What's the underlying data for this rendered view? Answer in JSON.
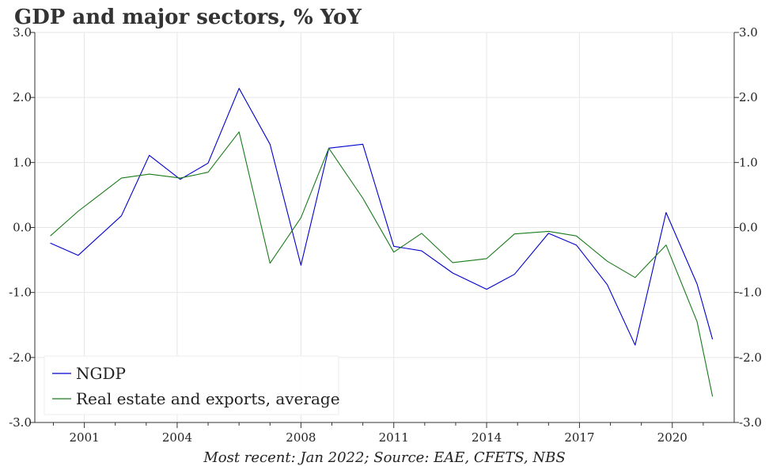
{
  "title": "GDP and major sectors, % YoY",
  "source": "Most recent: Jan 2022; Source: EAE, CFETS, NBS",
  "chart_data": {
    "type": "line",
    "title": "GDP and major sectors, % YoY",
    "xlabel": "",
    "ylabel": "",
    "ylim": [
      -3.0,
      3.0
    ],
    "y_ticks": [
      3.0,
      2.0,
      1.0,
      0.0,
      -1.0,
      -2.0,
      -3.0
    ],
    "y_tick_labels": [
      "3.0",
      "2.0",
      "1.0",
      "0.0",
      "-1.0",
      "-2.0",
      "-3.0"
    ],
    "x_ticks": [
      2001,
      2004,
      2008,
      2011,
      2014,
      2017,
      2020
    ],
    "x_tick_labels": [
      "2001",
      "2004",
      "2008",
      "2011",
      "2014",
      "2017",
      "2020"
    ],
    "xlim": [
      1999.4,
      2022.0
    ],
    "grid": true,
    "legend_position": "bottom-left",
    "series": [
      {
        "name": "NGDP",
        "color": "#0000cc",
        "x": [
          1999.9,
          2000.8,
          2002.2,
          2003.1,
          2004.1,
          2005.0,
          2006.0,
          2007.0,
          2008.0,
          2008.9,
          2010.0,
          2011.0,
          2011.9,
          2012.9,
          2014.0,
          2014.9,
          2016.0,
          2016.9,
          2017.9,
          2018.8,
          2019.8,
          2020.8,
          2021.3
        ],
        "values": [
          -0.24,
          -0.43,
          0.18,
          1.11,
          0.74,
          0.99,
          2.14,
          1.28,
          -0.58,
          1.22,
          1.28,
          -0.29,
          -0.36,
          -0.7,
          -0.95,
          -0.72,
          -0.09,
          -0.27,
          -0.88,
          -1.81,
          0.23,
          -0.87,
          -1.72
        ]
      },
      {
        "name": "Real estate and exports, average",
        "color": "#1a7a1a",
        "x": [
          1999.9,
          2000.8,
          2002.2,
          2003.1,
          2004.1,
          2005.0,
          2006.0,
          2007.0,
          2008.0,
          2008.9,
          2010.0,
          2011.0,
          2011.9,
          2012.9,
          2014.0,
          2014.9,
          2016.0,
          2016.9,
          2017.9,
          2018.8,
          2019.8,
          2020.8,
          2021.3
        ],
        "values": [
          -0.13,
          0.25,
          0.76,
          0.82,
          0.76,
          0.85,
          1.47,
          -0.55,
          0.15,
          1.22,
          0.45,
          -0.38,
          -0.09,
          -0.54,
          -0.48,
          -0.1,
          -0.06,
          -0.13,
          -0.52,
          -0.77,
          -0.27,
          -1.45,
          -2.6
        ]
      }
    ]
  }
}
